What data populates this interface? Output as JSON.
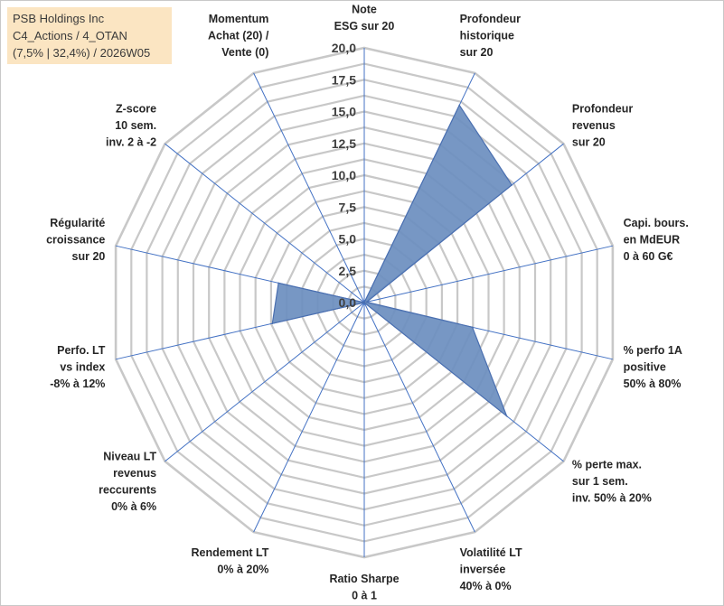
{
  "title_box": {
    "line1": "PSB Holdings Inc",
    "line2": "C4_Actions / 4_OTAN",
    "line3": "(7,5% | 32,4%) / 2026W05"
  },
  "colors": {
    "grid": "#c8c8c8",
    "spoke": "#4472c4",
    "fill": "#6d8fc0",
    "fill_stroke": "#4a6fb0",
    "title_bg": "#fbe5c2"
  },
  "chart_data": {
    "type": "radar",
    "range": [
      0,
      20
    ],
    "tick_values": [
      0,
      2.5,
      5,
      7.5,
      10,
      12.5,
      15,
      17.5,
      20
    ],
    "tick_labels": [
      "0,0",
      "2,5",
      "5,0",
      "7,5",
      "10,0",
      "12,5",
      "15,0",
      "17,5",
      "20,0"
    ],
    "axes": [
      {
        "label": [
          "Note",
          "ESG sur 20"
        ],
        "value": 0
      },
      {
        "label": [
          "Profondeur",
          "historique",
          "sur 20"
        ],
        "value": 17.2
      },
      {
        "label": [
          "Profondeur",
          "revenus",
          "sur 20"
        ],
        "value": 14.8
      },
      {
        "label": [
          "Capi. bours.",
          "en MdEUR",
          "0 à 60 G€"
        ],
        "value": 0.2
      },
      {
        "label": [
          "% perfo 1A",
          "positive",
          "50% à 80%"
        ],
        "value": 8.7
      },
      {
        "label": [
          "% perte max.",
          "sur 1 sem.",
          "inv. 50% à 20%"
        ],
        "value": 14.3
      },
      {
        "label": [
          "Volatilité LT",
          "inversée",
          "40% à 0%"
        ],
        "value": 0
      },
      {
        "label": [
          "Ratio Sharpe",
          "0 à 1"
        ],
        "value": 0
      },
      {
        "label": [
          "Rendement LT",
          "0% à 20%"
        ],
        "value": 0
      },
      {
        "label": [
          "Niveau LT",
          "revenus",
          "reccurents",
          "0% à 6%"
        ],
        "value": 0
      },
      {
        "label": [
          "Perfo. LT",
          "vs index",
          "-8% à 12%"
        ],
        "value": 7.4
      },
      {
        "label": [
          "Régularité",
          "croissance",
          "sur 20"
        ],
        "value": 6.9
      },
      {
        "label": [
          "Z-score",
          "10 sem.",
          "inv. 2 à -2"
        ],
        "value": 0
      },
      {
        "label": [
          "Momentum",
          "Achat (20) /",
          "Vente (0)"
        ],
        "value": 0
      }
    ]
  }
}
